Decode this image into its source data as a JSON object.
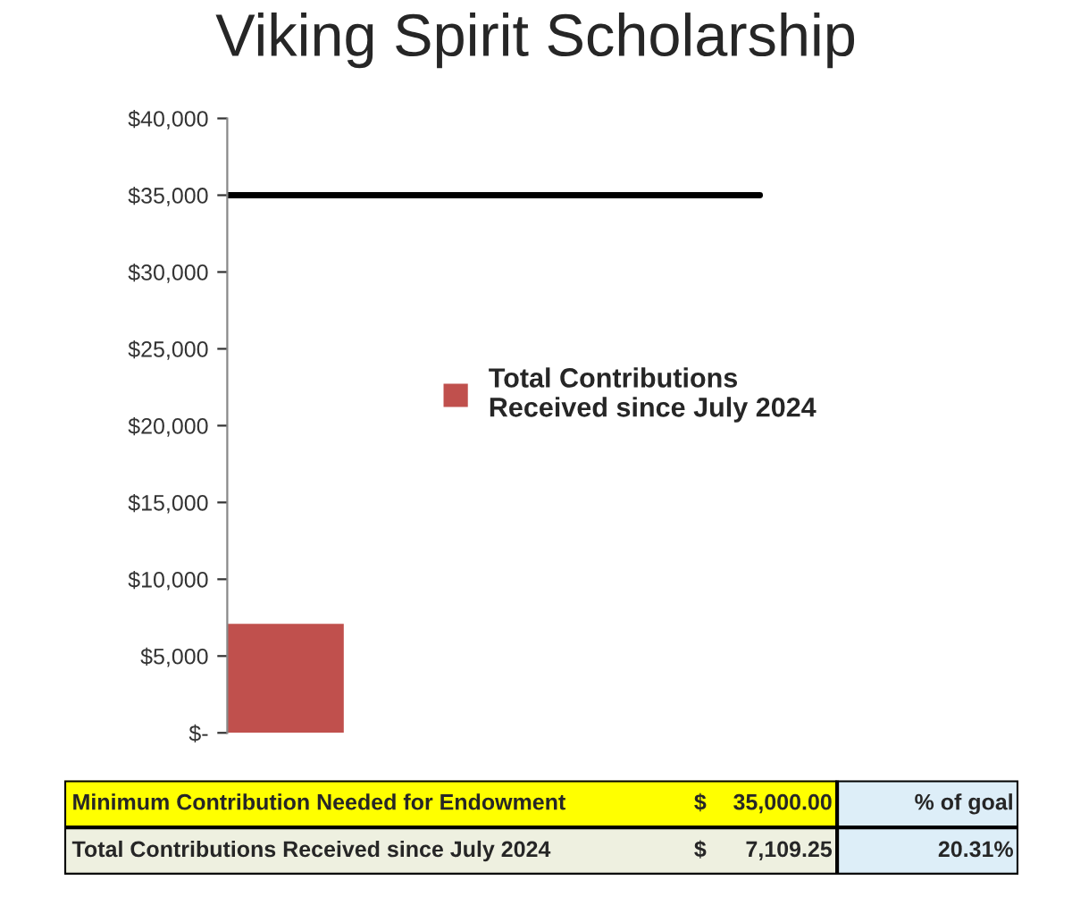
{
  "chart_data": {
    "type": "bar",
    "title": "Viking Spirit Scholarship",
    "categories": [
      null
    ],
    "series": [
      {
        "name": "Total Contributions Received since July 2024",
        "color": "#c0504d",
        "values": [
          7100
        ]
      }
    ],
    "ylim": [
      0,
      40000
    ],
    "yticks": [
      {
        "value": 0,
        "label": "$-"
      },
      {
        "value": 5000,
        "label": "$5,000"
      },
      {
        "value": 10000,
        "label": "$10,000"
      },
      {
        "value": 15000,
        "label": "$15,000"
      },
      {
        "value": 20000,
        "label": "$20,000"
      },
      {
        "value": 25000,
        "label": "$25,000"
      },
      {
        "value": 30000,
        "label": "$30,000"
      },
      {
        "value": 35000,
        "label": "$35,000"
      },
      {
        "value": 40000,
        "label": "$40,000"
      }
    ],
    "ref_lines": [
      {
        "axis": "y",
        "value": 35000,
        "color": "#000000",
        "line_style": "solid"
      }
    ],
    "legend": "right",
    "grid": false,
    "annotations": [
      "Minimum Contribution Needed for Endowment",
      "$",
      "35,000.00",
      "% of goal",
      "Total Contributions Received since July 2024",
      "$",
      "7,109.25",
      "20.31%"
    ]
  }
}
